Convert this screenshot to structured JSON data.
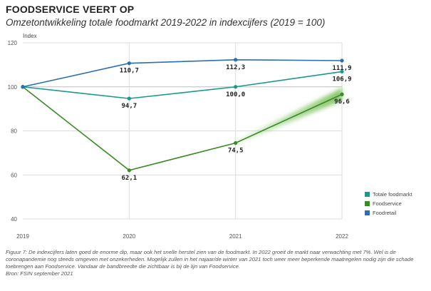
{
  "header": {
    "title": "FOODSERVICE VEERT OP",
    "subtitle": "Omzetontwikkeling totale foodmarkt 2019-2022 in indexcijfers (2019 = 100)"
  },
  "caption": "Figuur 7: De indexcijfers laten goed de enorme dip, maar ook het snelle herstel zien van de foodmarkt. In 2022 groeit de markt naar verwachting met 7%. Wel is de coronapandemie nog steeds omgeven met onzekerheden. Mogelijk zullen in het najaar/de winter van 2021 toch weer meer beperkende maatregelen nodig zijn die schade toebrengen aan Foodservice. Vandaar de bandbreedte die zichtbaar is bij de lijn van Foodservice.",
  "source": "Bron: FSIN september 2021",
  "chart_data": {
    "type": "line",
    "ylabel": "Index",
    "x": [
      "2019",
      "2020",
      "2021",
      "2022"
    ],
    "ylim": [
      40,
      120
    ],
    "yticks": [
      40,
      60,
      80,
      100,
      120
    ],
    "grid": true,
    "legend_position": "bottom-right",
    "series": [
      {
        "name": "Totale foodmarkt",
        "color": "#1a9a8c",
        "values": [
          100,
          94.7,
          100.0,
          106.9
        ],
        "labels": [
          "",
          "94,7",
          "100,0",
          "106,9"
        ]
      },
      {
        "name": "Foodservice",
        "color": "#3a8a28",
        "values": [
          100,
          62.1,
          74.5,
          96.6
        ],
        "labels": [
          "",
          "62,1",
          "74,5",
          "96,6"
        ],
        "band": true
      },
      {
        "name": "Foodretail",
        "color": "#2b6fb0",
        "values": [
          100,
          110.7,
          112.3,
          111.9
        ],
        "labels": [
          "",
          "110,7",
          "112,3",
          "111,9"
        ]
      }
    ]
  }
}
